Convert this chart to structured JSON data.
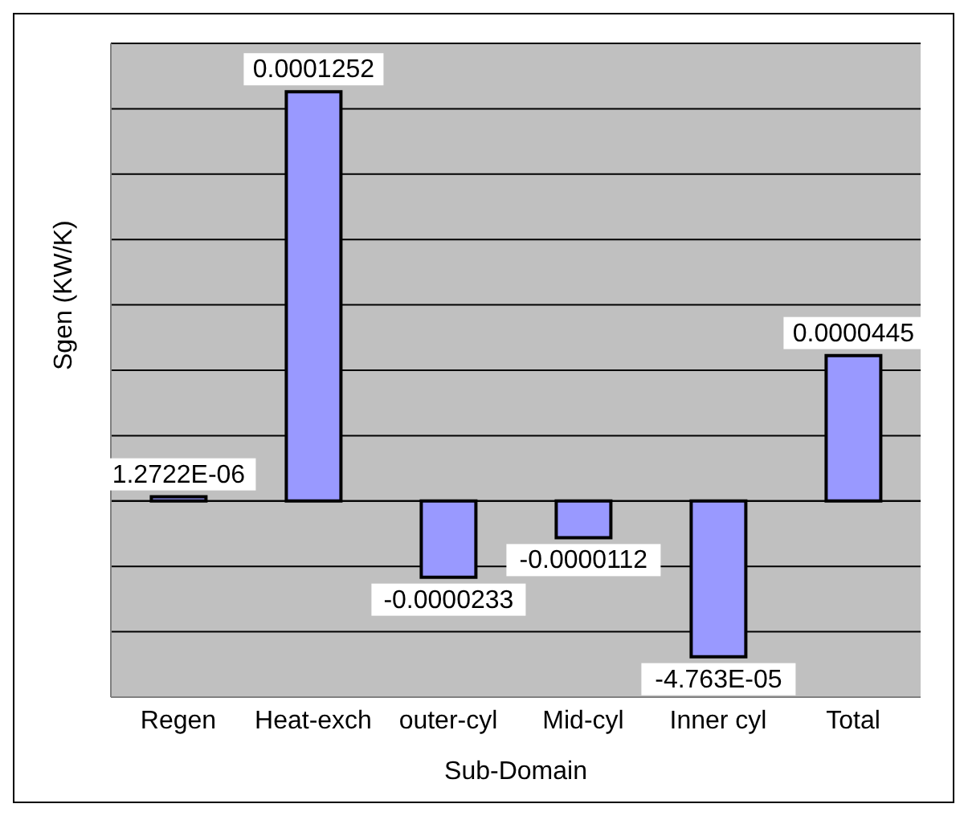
{
  "chart_data": {
    "type": "bar",
    "xlabel": "Sub-Domain",
    "ylabel": "Sgen (KW/K)",
    "categories": [
      "Regen",
      "Heat-exch",
      "outer-cyl",
      "Mid-cyl",
      "Inner cyl",
      "Total"
    ],
    "values": [
      1.2722e-06,
      0.0001252,
      -2.33e-05,
      -1.12e-05,
      -4.763e-05,
      4.45e-05
    ],
    "value_labels": [
      "1.2722E-06",
      "0.0001252",
      "-0.0000233",
      "-0.0000112",
      "-4.763E-05",
      "0.0000445"
    ],
    "color": "#9999ff",
    "ylim": [
      -6e-05,
      0.00014
    ],
    "tick_labels": "x",
    "grid": "y",
    "legend": false
  }
}
